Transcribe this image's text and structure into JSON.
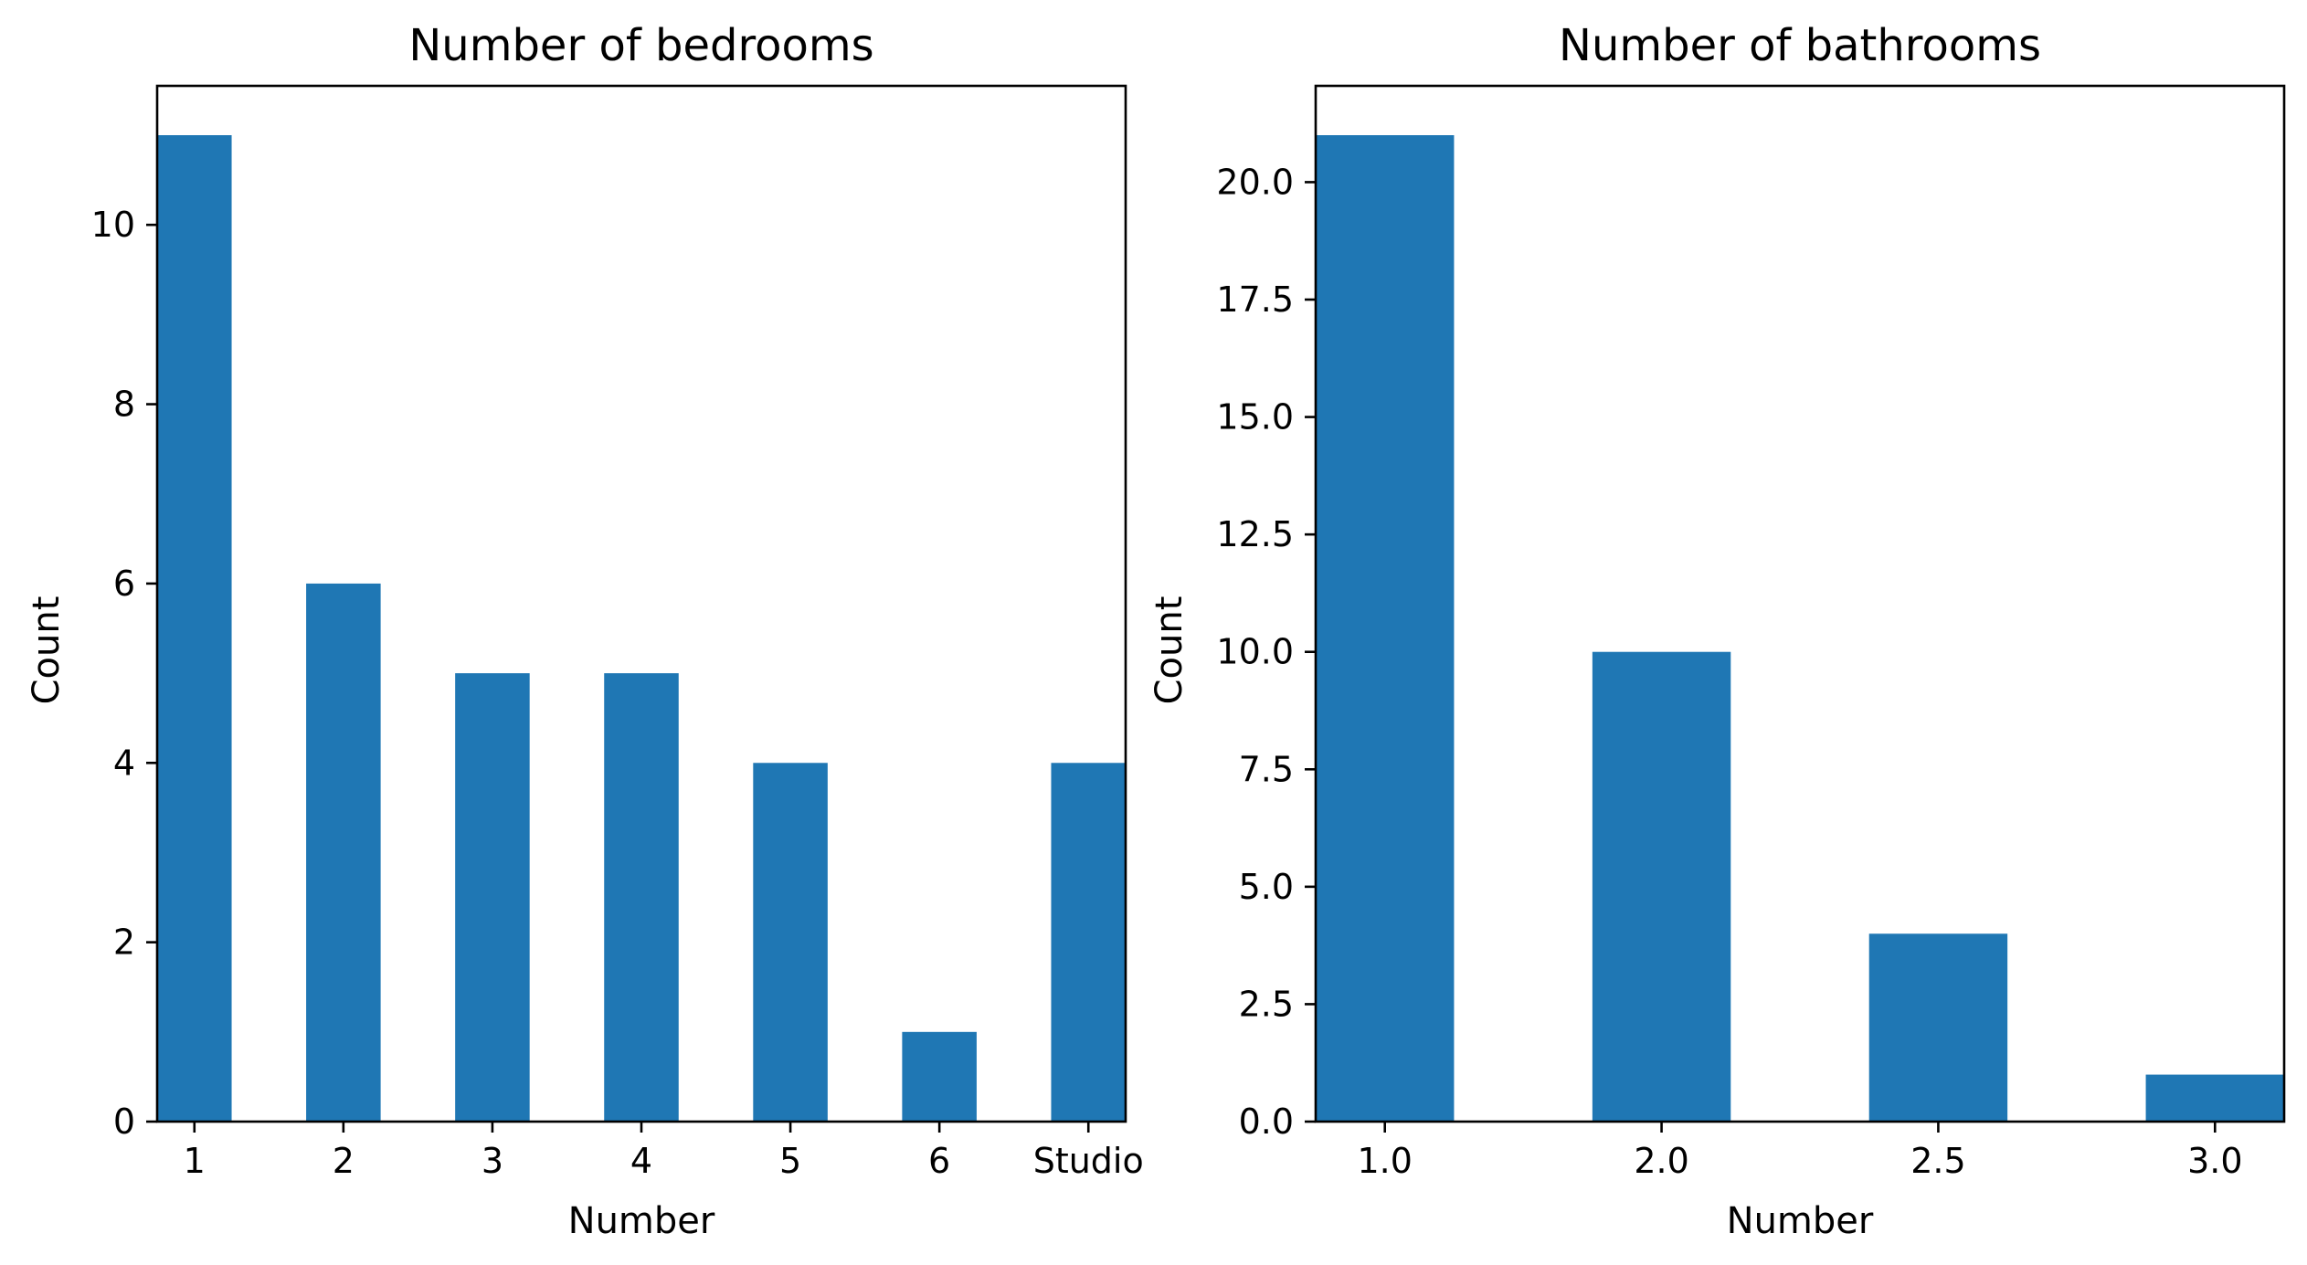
{
  "colors": {
    "bar": "#1f77b4",
    "axis": "#000000",
    "background": "#ffffff"
  },
  "chart_data": [
    {
      "type": "bar",
      "title": "Number of bedrooms",
      "xlabel": "Number",
      "ylabel": "Count",
      "categories": [
        "1",
        "2",
        "3",
        "4",
        "5",
        "6",
        "Studio"
      ],
      "values": [
        11,
        6,
        5,
        5,
        4,
        1,
        4
      ],
      "ylim": [
        0,
        11.55
      ],
      "yticks": [
        0,
        2,
        4,
        6,
        8,
        10
      ],
      "ytick_labels": [
        "0",
        "2",
        "4",
        "6",
        "8",
        "10"
      ],
      "grid": false,
      "legend": "none"
    },
    {
      "type": "bar",
      "title": "Number of bathrooms",
      "xlabel": "Number",
      "ylabel": "Count",
      "categories": [
        "1.0",
        "2.0",
        "2.5",
        "3.0"
      ],
      "values": [
        21,
        10,
        4,
        1
      ],
      "ylim": [
        0,
        22.05
      ],
      "yticks": [
        0,
        2.5,
        5,
        7.5,
        10,
        12.5,
        15,
        17.5,
        20
      ],
      "ytick_labels": [
        "0.0",
        "2.5",
        "5.0",
        "7.5",
        "10.0",
        "12.5",
        "15.0",
        "17.5",
        "20.0"
      ],
      "grid": false,
      "legend": "none"
    }
  ]
}
